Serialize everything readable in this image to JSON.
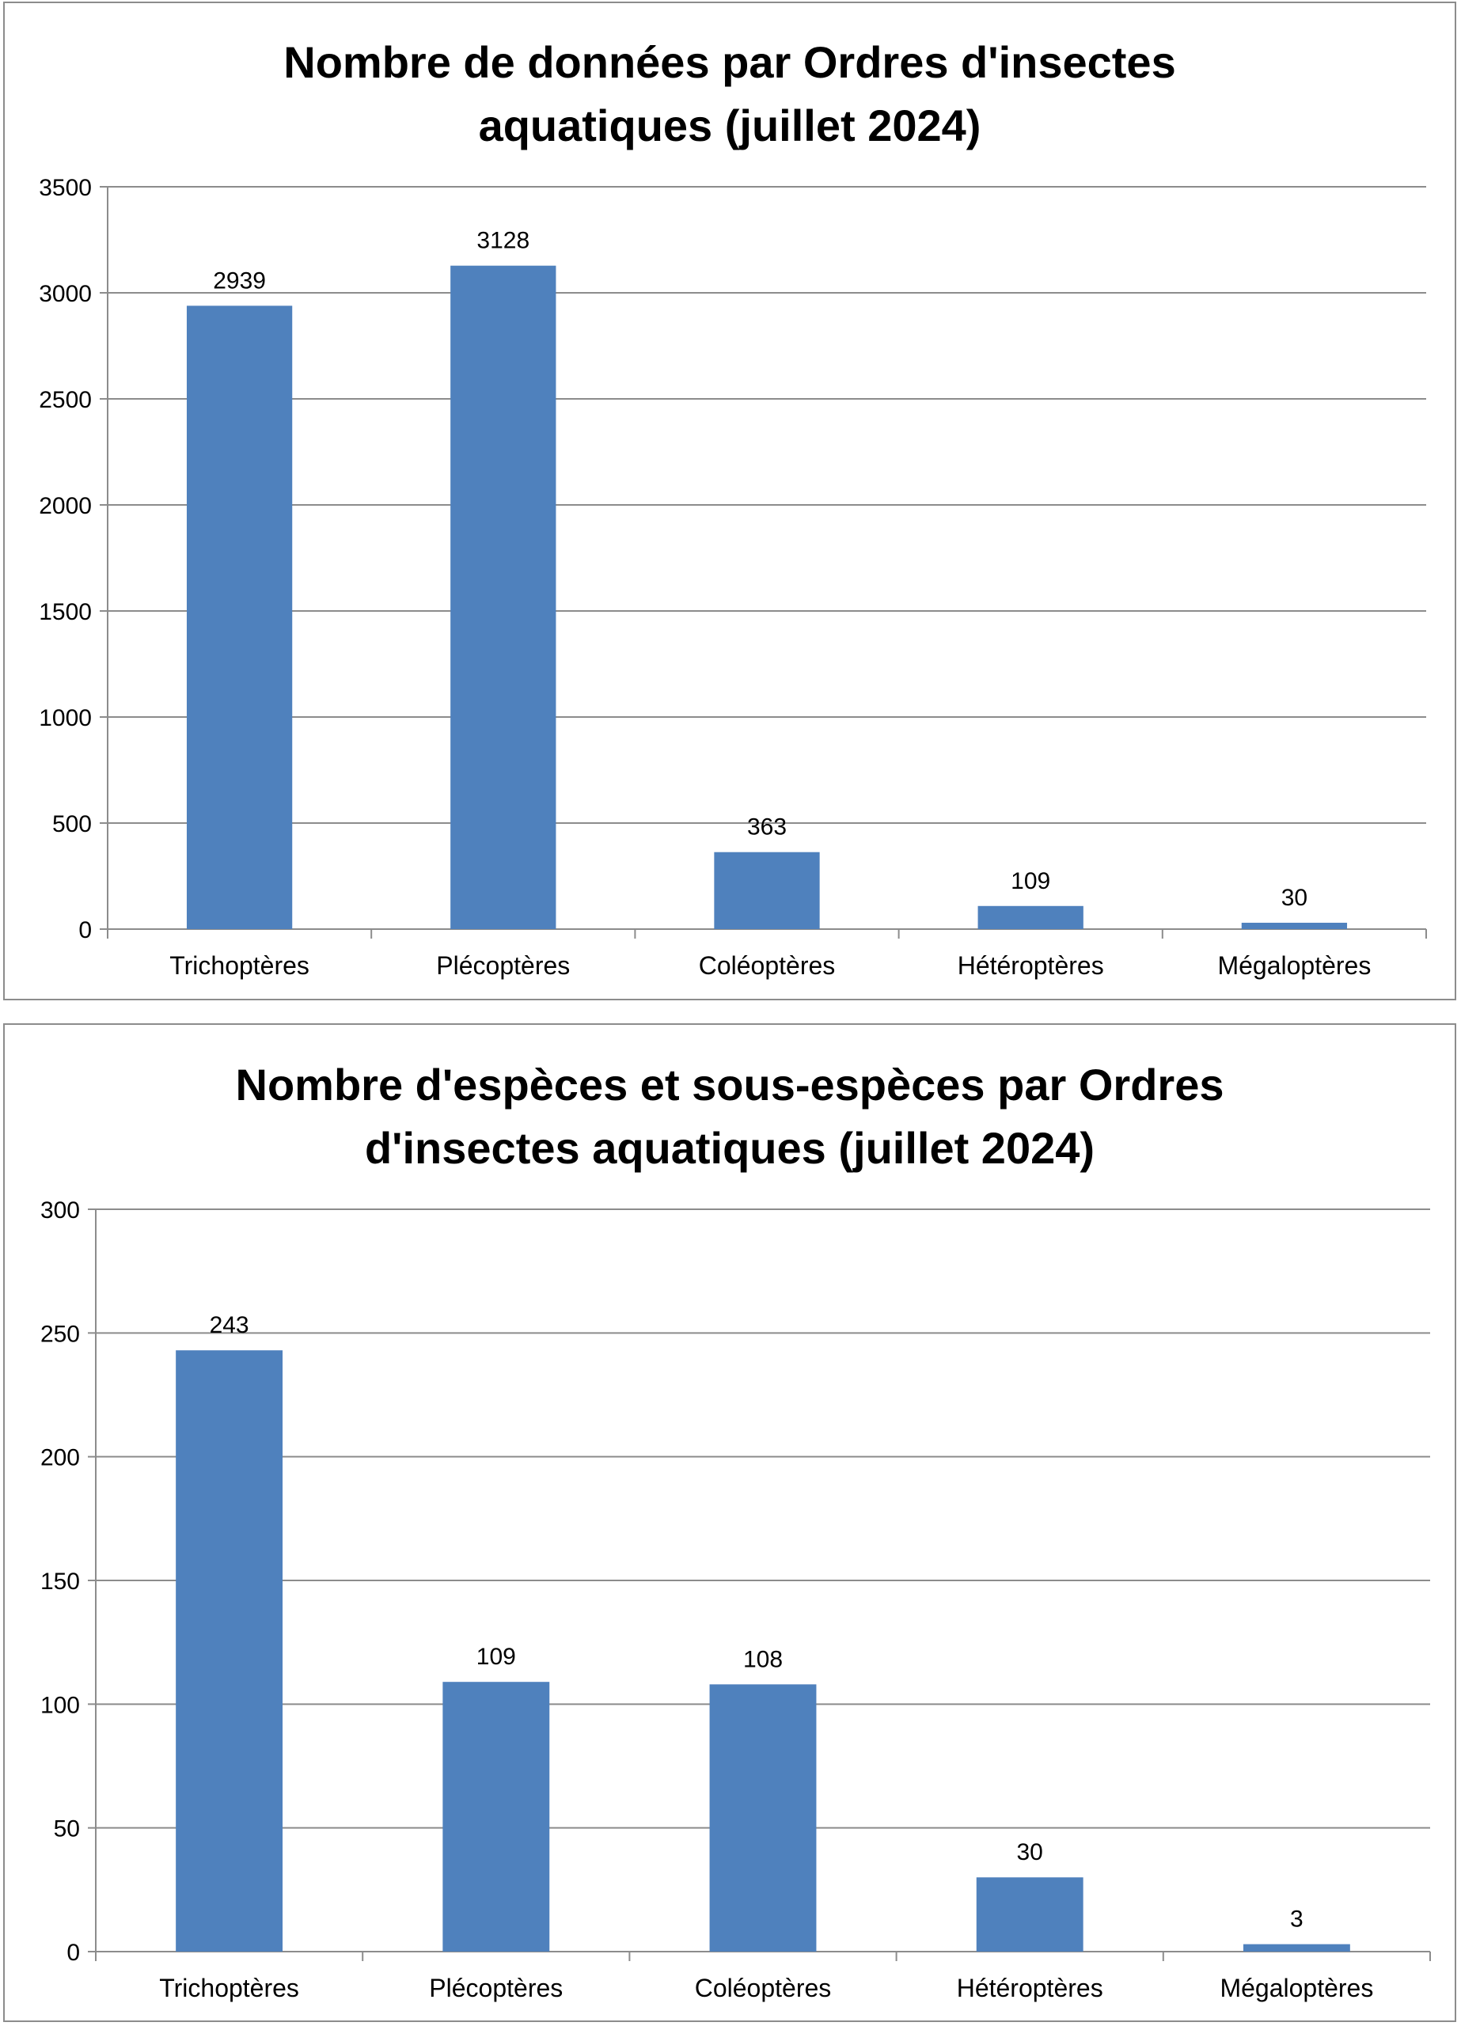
{
  "chart_data": [
    {
      "type": "bar",
      "title_lines": [
        "Nombre de données par Ordres d'insectes",
        "aquatiques (juillet 2024)"
      ],
      "categories": [
        "Trichoptères",
        "Plécoptères",
        "Coléoptères",
        "Hétéroptères",
        "Mégaloptères"
      ],
      "values": [
        2939,
        3128,
        363,
        109,
        30
      ],
      "ylim": [
        0,
        3500
      ],
      "yticks": [
        0,
        500,
        1000,
        1500,
        2000,
        2500,
        3000,
        3500
      ],
      "grid": true,
      "legend": "none",
      "bar_color": "#4f81bd"
    },
    {
      "type": "bar",
      "title_lines": [
        "Nombre d'espèces et sous-espèces par Ordres",
        "d'insectes aquatiques (juillet 2024)"
      ],
      "categories": [
        "Trichoptères",
        "Plécoptères",
        "Coléoptères",
        "Hétéroptères",
        "Mégaloptères"
      ],
      "values": [
        243,
        109,
        108,
        30,
        3
      ],
      "ylim": [
        0,
        300
      ],
      "yticks": [
        0,
        50,
        100,
        150,
        200,
        250,
        300
      ],
      "grid": true,
      "legend": "none",
      "bar_color": "#4f81bd"
    }
  ]
}
